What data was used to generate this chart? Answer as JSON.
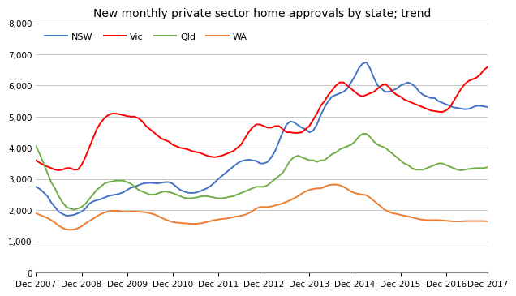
{
  "title": "New monthly private sector home approvals by state; trend",
  "ylim": [
    0,
    8000
  ],
  "yticks": [
    0,
    1000,
    2000,
    3000,
    4000,
    5000,
    6000,
    7000,
    8000
  ],
  "series": {
    "NSW": {
      "color": "#4472C4",
      "values_y": [
        2750,
        2680,
        2570,
        2450,
        2250,
        2100,
        1950,
        1880,
        1820,
        1830,
        1850,
        1900,
        1950,
        2050,
        2200,
        2280,
        2320,
        2350,
        2400,
        2450,
        2480,
        2500,
        2530,
        2570,
        2650,
        2720,
        2750,
        2800,
        2850,
        2870,
        2880,
        2870,
        2860,
        2880,
        2900,
        2900,
        2850,
        2750,
        2650,
        2600,
        2560,
        2550,
        2560,
        2600,
        2650,
        2700,
        2780,
        2880,
        3000,
        3100,
        3200,
        3300,
        3400,
        3500,
        3570,
        3600,
        3620,
        3600,
        3580,
        3500,
        3500,
        3550,
        3700,
        3900,
        4200,
        4500,
        4750,
        4850,
        4820,
        4730,
        4650,
        4600,
        4500,
        4550,
        4750,
        5050,
        5300,
        5500,
        5650,
        5700,
        5750,
        5800,
        5900,
        6100,
        6300,
        6550,
        6700,
        6750,
        6550,
        6250,
        6000,
        5900,
        5800,
        5800,
        5850,
        5900,
        6000,
        6050,
        6100,
        6050,
        5950,
        5800,
        5700,
        5650,
        5600,
        5600,
        5500,
        5450,
        5400,
        5350,
        5300,
        5280,
        5260,
        5240,
        5250,
        5300,
        5350,
        5350,
        5330,
        5310
      ]
    },
    "Vic": {
      "color": "#FF0000",
      "values_y": [
        3600,
        3520,
        3450,
        3400,
        3350,
        3300,
        3280,
        3300,
        3350,
        3350,
        3300,
        3300,
        3450,
        3700,
        4000,
        4300,
        4600,
        4800,
        4950,
        5050,
        5100,
        5100,
        5080,
        5050,
        5020,
        5000,
        5000,
        4950,
        4850,
        4700,
        4600,
        4500,
        4400,
        4300,
        4250,
        4200,
        4100,
        4050,
        4000,
        3980,
        3950,
        3900,
        3870,
        3850,
        3800,
        3750,
        3720,
        3700,
        3720,
        3750,
        3800,
        3850,
        3900,
        4000,
        4100,
        4300,
        4500,
        4650,
        4750,
        4750,
        4700,
        4650,
        4650,
        4700,
        4700,
        4600,
        4500,
        4500,
        4480,
        4480,
        4500,
        4600,
        4700,
        4900,
        5100,
        5350,
        5500,
        5700,
        5850,
        6000,
        6100,
        6100,
        6000,
        5900,
        5800,
        5700,
        5650,
        5700,
        5750,
        5800,
        5900,
        6000,
        6050,
        5950,
        5800,
        5700,
        5650,
        5550,
        5500,
        5450,
        5400,
        5350,
        5300,
        5250,
        5200,
        5180,
        5160,
        5150,
        5200,
        5300,
        5500,
        5700,
        5900,
        6050,
        6150,
        6200,
        6250,
        6350,
        6500,
        6600
      ]
    },
    "Qld": {
      "color": "#70AD47",
      "values_y": [
        4050,
        3800,
        3500,
        3200,
        2900,
        2700,
        2450,
        2250,
        2100,
        2050,
        2020,
        2050,
        2100,
        2200,
        2350,
        2500,
        2650,
        2750,
        2850,
        2900,
        2920,
        2950,
        2950,
        2950,
        2900,
        2850,
        2750,
        2650,
        2600,
        2550,
        2500,
        2500,
        2530,
        2580,
        2600,
        2580,
        2550,
        2500,
        2450,
        2400,
        2380,
        2380,
        2400,
        2430,
        2450,
        2450,
        2430,
        2400,
        2380,
        2380,
        2400,
        2430,
        2450,
        2500,
        2550,
        2600,
        2650,
        2700,
        2750,
        2750,
        2750,
        2800,
        2900,
        3000,
        3100,
        3200,
        3400,
        3600,
        3700,
        3750,
        3700,
        3650,
        3600,
        3600,
        3550,
        3600,
        3600,
        3700,
        3800,
        3850,
        3950,
        4000,
        4050,
        4100,
        4200,
        4350,
        4450,
        4450,
        4350,
        4200,
        4100,
        4050,
        4000,
        3900,
        3800,
        3700,
        3600,
        3500,
        3450,
        3350,
        3300,
        3300,
        3300,
        3350,
        3400,
        3450,
        3500,
        3500,
        3450,
        3400,
        3350,
        3300,
        3280,
        3300,
        3320,
        3340,
        3350,
        3350,
        3350,
        3380
      ]
    },
    "WA": {
      "color": "#ED7D31",
      "values_y": [
        1900,
        1850,
        1800,
        1750,
        1680,
        1600,
        1500,
        1430,
        1380,
        1370,
        1380,
        1420,
        1480,
        1570,
        1650,
        1720,
        1800,
        1870,
        1920,
        1960,
        1980,
        1980,
        1970,
        1950,
        1950,
        1960,
        1960,
        1950,
        1940,
        1930,
        1900,
        1870,
        1820,
        1760,
        1700,
        1660,
        1620,
        1600,
        1590,
        1580,
        1570,
        1560,
        1560,
        1570,
        1590,
        1620,
        1650,
        1680,
        1700,
        1720,
        1730,
        1750,
        1780,
        1800,
        1820,
        1850,
        1900,
        1970,
        2050,
        2100,
        2100,
        2100,
        2120,
        2150,
        2180,
        2220,
        2270,
        2320,
        2380,
        2450,
        2530,
        2600,
        2650,
        2680,
        2700,
        2700,
        2750,
        2800,
        2820,
        2820,
        2800,
        2750,
        2680,
        2600,
        2550,
        2520,
        2500,
        2480,
        2400,
        2300,
        2200,
        2100,
        2000,
        1950,
        1900,
        1880,
        1850,
        1820,
        1800,
        1770,
        1740,
        1710,
        1690,
        1680,
        1680,
        1680,
        1680,
        1670,
        1660,
        1650,
        1640,
        1640,
        1640,
        1650,
        1650,
        1650,
        1650,
        1650,
        1650,
        1640
      ]
    }
  },
  "x_tick_positions": [
    0,
    12,
    24,
    36,
    48,
    60,
    72,
    84,
    96,
    108,
    119
  ],
  "x_tick_labels": [
    "Dec-2007",
    "Dec-2008",
    "Dec-2009",
    "Dec-2010",
    "Dec-2011",
    "Dec-2012",
    "Dec-2013",
    "Dec-2014",
    "Dec-2015",
    "Dec-2016",
    "Dec-2017"
  ],
  "n_points": 120,
  "legend_order": [
    "NSW",
    "Vic",
    "Qld",
    "WA"
  ],
  "background_color": "#FFFFFF",
  "grid_color": "#BEBEBE",
  "title_fontsize": 10,
  "tick_fontsize": 7.5,
  "legend_fontsize": 8,
  "linewidth": 1.4
}
